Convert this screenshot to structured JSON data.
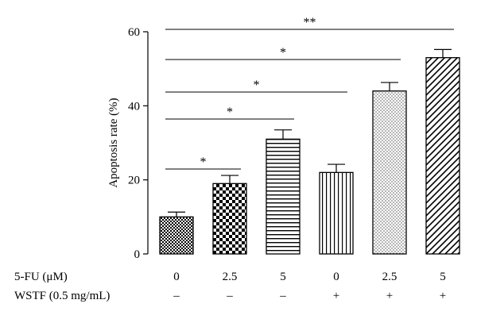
{
  "chart_data": {
    "type": "bar",
    "ylabel": "Apoptosis rate (%)",
    "ylim": [
      0,
      60
    ],
    "yticks": [
      0,
      20,
      40,
      60
    ],
    "categories": [
      "0",
      "2.5",
      "5",
      "0",
      "2.5",
      "5"
    ],
    "values": [
      10,
      19,
      31,
      22,
      44,
      53
    ],
    "errors": [
      1.3,
      2.2,
      2.5,
      2.2,
      2.3,
      2.2
    ],
    "patterns": [
      "checker-fine",
      "checker-coarse",
      "horizontal-lines",
      "vertical-lines",
      "dots",
      "diagonal-lines"
    ],
    "row_labels": {
      "fu": {
        "label": "5-FU (μM)",
        "values": [
          "0",
          "2.5",
          "5",
          "0",
          "2.5",
          "5"
        ]
      },
      "wstf": {
        "label": "WSTF (0.5 mg/mL)",
        "values": [
          "–",
          "–",
          "–",
          "+",
          "+",
          "+"
        ]
      }
    },
    "significance": [
      {
        "from": 0,
        "to": 1,
        "label": "*"
      },
      {
        "from": 0,
        "to": 2,
        "label": "*"
      },
      {
        "from": 0,
        "to": 3,
        "label": "*"
      },
      {
        "from": 0,
        "to": 4,
        "label": "*"
      },
      {
        "from": 0,
        "to": 5,
        "label": "**"
      }
    ]
  }
}
